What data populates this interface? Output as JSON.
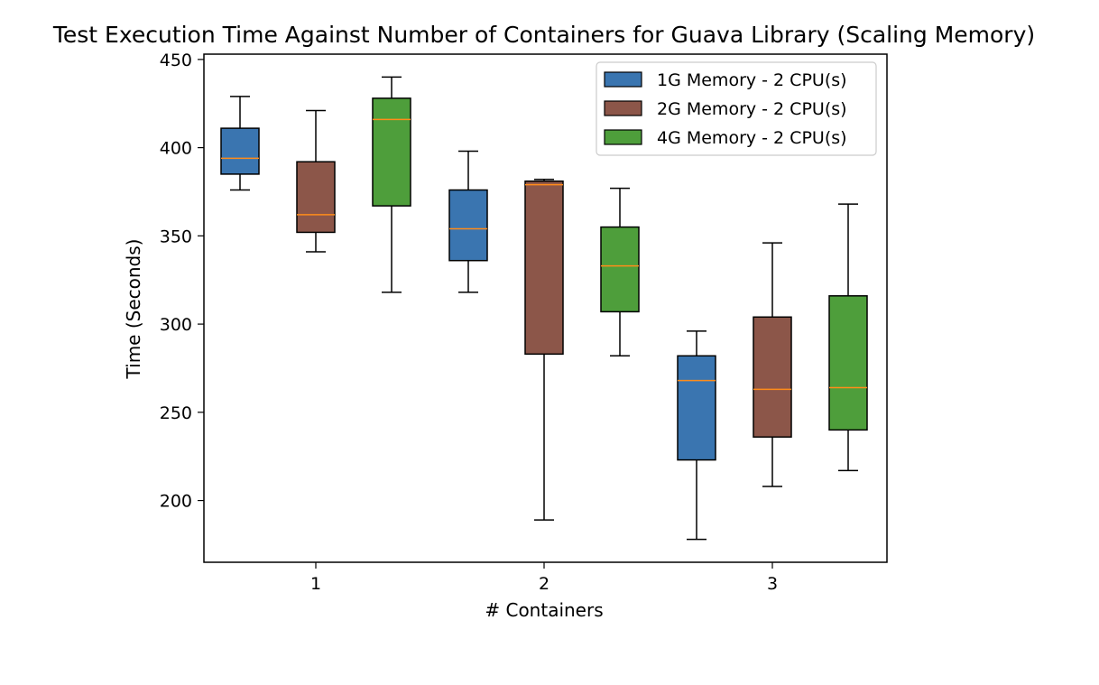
{
  "chart_data": {
    "type": "box",
    "title": "Test Execution Time Against Number of Containers for Guava Library (Scaling Memory)",
    "xlabel": "# Containers",
    "ylabel": "Time (Seconds)",
    "categories": [
      "1",
      "2",
      "3"
    ],
    "ylim": [
      165,
      453
    ],
    "yticks": [
      200,
      250,
      300,
      350,
      400,
      450
    ],
    "grid": false,
    "legend_position": "upper-right",
    "median_color": "#ff8c1a",
    "series": [
      {
        "name": "1G Memory - 2 CPU(s)",
        "color": "#3a75b0",
        "boxes": [
          {
            "min": 376,
            "q1": 385,
            "median": 394,
            "q3": 411,
            "max": 429
          },
          {
            "min": 318,
            "q1": 336,
            "median": 354,
            "q3": 376,
            "max": 398
          },
          {
            "min": 178,
            "q1": 223,
            "median": 268,
            "q3": 282,
            "max": 296
          }
        ]
      },
      {
        "name": "2G Memory - 2 CPU(s)",
        "color": "#8c5649",
        "boxes": [
          {
            "min": 341,
            "q1": 352,
            "median": 362,
            "q3": 392,
            "max": 421
          },
          {
            "min": 189,
            "q1": 283,
            "median": 379,
            "q3": 381,
            "max": 382
          },
          {
            "min": 208,
            "q1": 236,
            "median": 263,
            "q3": 304,
            "max": 346
          }
        ]
      },
      {
        "name": "4G Memory - 2 CPU(s)",
        "color": "#4e9e3b",
        "boxes": [
          {
            "min": 318,
            "q1": 367,
            "median": 416,
            "q3": 428,
            "max": 440
          },
          {
            "min": 282,
            "q1": 307,
            "median": 333,
            "q3": 355,
            "max": 377
          },
          {
            "min": 217,
            "q1": 240,
            "median": 264,
            "q3": 316,
            "max": 368
          }
        ]
      }
    ]
  }
}
